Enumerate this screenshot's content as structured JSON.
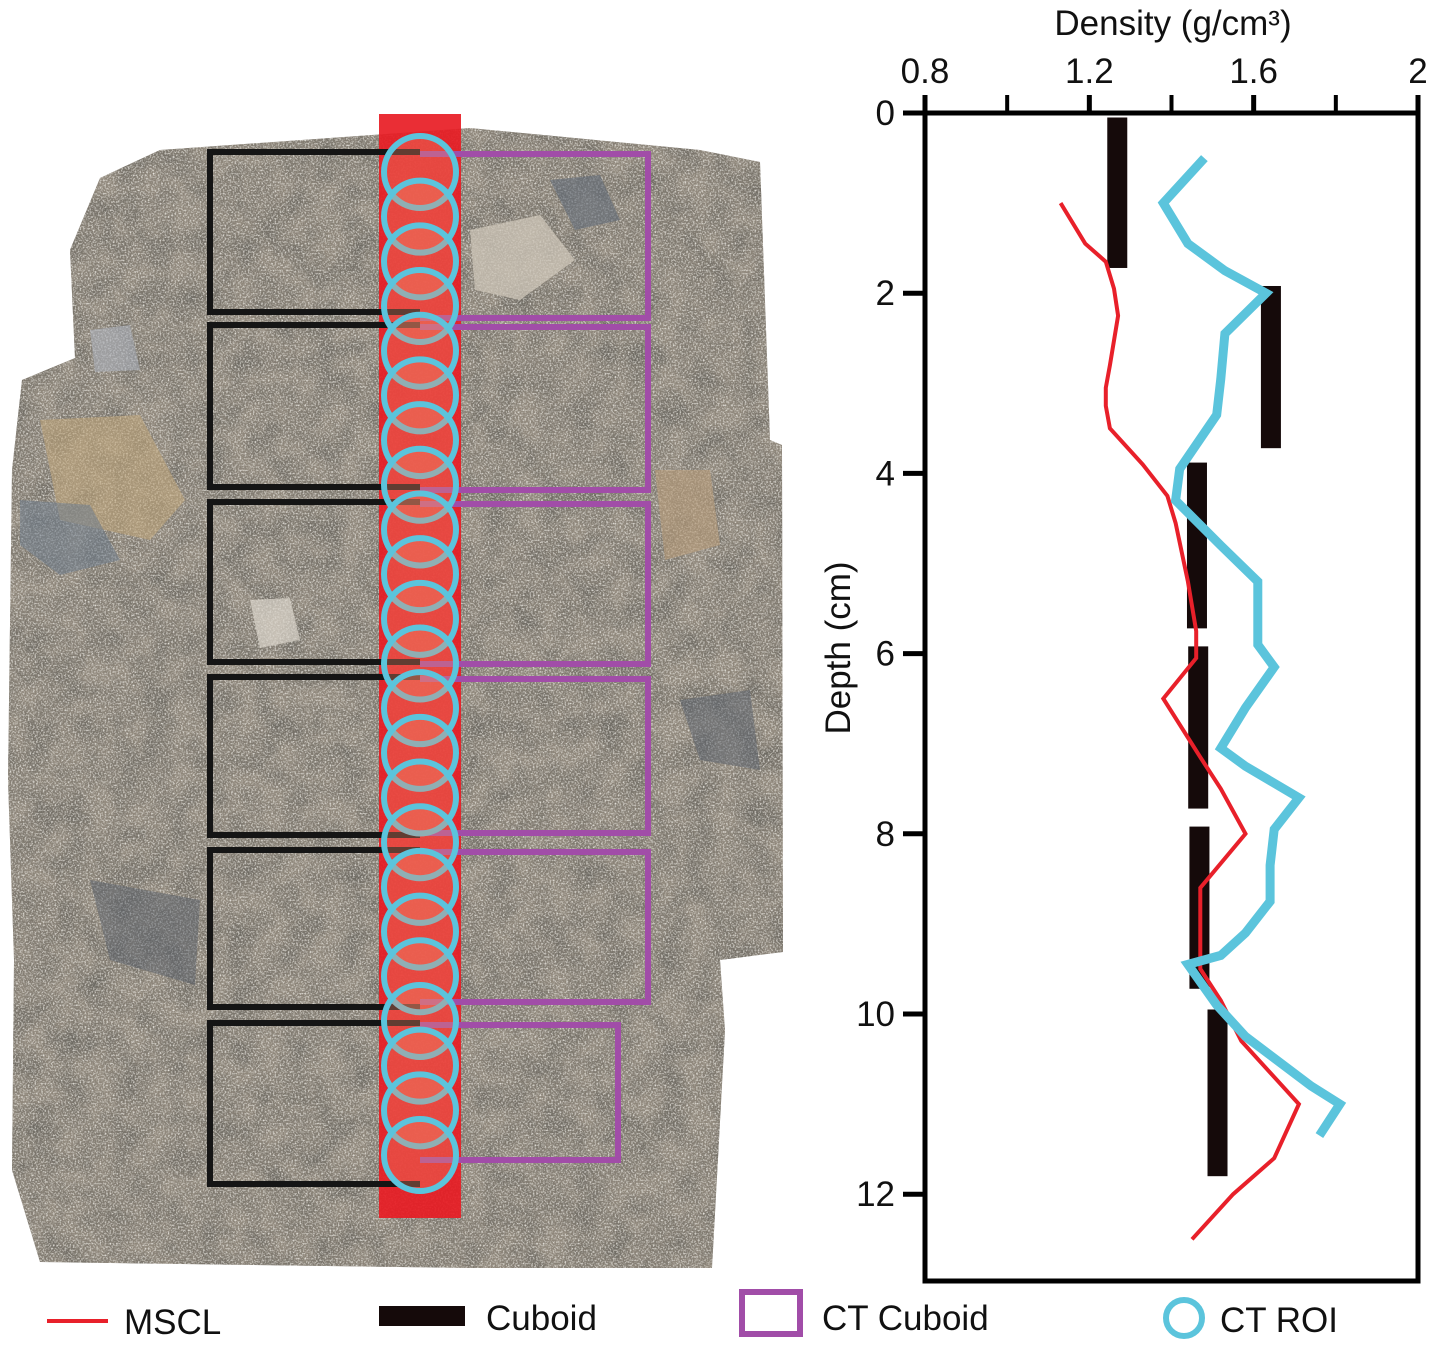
{
  "chart_data": {
    "type": "line",
    "xlabel": "Density (g/cm³)",
    "ylabel": "Depth (cm)",
    "xlim": [
      0.8,
      2.0
    ],
    "ylim": [
      0,
      13
    ],
    "x_ticks": [
      0.8,
      1.2,
      1.6,
      2
    ],
    "x_tick_labels": [
      "0.8",
      "1.2",
      "1.6",
      "2"
    ],
    "y_ticks": [
      0,
      2,
      4,
      6,
      8,
      10,
      12
    ],
    "y_tick_labels": [
      "0",
      "2",
      "4",
      "6",
      "8",
      "10",
      "12"
    ],
    "y_inverted": true,
    "x_axis_position": "top",
    "grid": false,
    "legend_position": "bottom",
    "series": [
      {
        "name": "MSCL",
        "color": "#e8202a",
        "style": "thin-line",
        "points": [
          [
            1.13,
            1.0
          ],
          [
            1.19,
            1.45
          ],
          [
            1.24,
            1.65
          ],
          [
            1.26,
            1.95
          ],
          [
            1.27,
            2.25
          ],
          [
            1.25,
            2.8
          ],
          [
            1.24,
            3.05
          ],
          [
            1.24,
            3.25
          ],
          [
            1.25,
            3.5
          ],
          [
            1.33,
            3.9
          ],
          [
            1.39,
            4.25
          ],
          [
            1.41,
            4.55
          ],
          [
            1.44,
            5.2
          ],
          [
            1.46,
            5.75
          ],
          [
            1.46,
            6.05
          ],
          [
            1.38,
            6.5
          ],
          [
            1.47,
            7.15
          ],
          [
            1.52,
            7.5
          ],
          [
            1.58,
            8.0
          ],
          [
            1.47,
            8.6
          ],
          [
            1.47,
            9.5
          ],
          [
            1.52,
            9.85
          ],
          [
            1.57,
            10.3
          ],
          [
            1.71,
            11.0
          ],
          [
            1.65,
            11.6
          ],
          [
            1.55,
            12.0
          ],
          [
            1.45,
            12.5
          ]
        ]
      },
      {
        "name": "CT ROI",
        "color": "#5bc4dc",
        "style": "thick-line",
        "points": [
          [
            1.48,
            0.5
          ],
          [
            1.38,
            1.0
          ],
          [
            1.44,
            1.45
          ],
          [
            1.53,
            1.75
          ],
          [
            1.63,
            2.0
          ],
          [
            1.53,
            2.45
          ],
          [
            1.52,
            2.95
          ],
          [
            1.51,
            3.35
          ],
          [
            1.42,
            3.95
          ],
          [
            1.41,
            4.3
          ],
          [
            1.52,
            4.8
          ],
          [
            1.61,
            5.2
          ],
          [
            1.61,
            5.9
          ],
          [
            1.65,
            6.15
          ],
          [
            1.58,
            6.6
          ],
          [
            1.52,
            7.05
          ],
          [
            1.58,
            7.25
          ],
          [
            1.71,
            7.6
          ],
          [
            1.65,
            7.95
          ],
          [
            1.64,
            8.35
          ],
          [
            1.64,
            8.75
          ],
          [
            1.58,
            9.1
          ],
          [
            1.52,
            9.35
          ],
          [
            1.44,
            9.45
          ],
          [
            1.51,
            9.9
          ],
          [
            1.58,
            10.25
          ],
          [
            1.74,
            10.8
          ],
          [
            1.81,
            11.0
          ],
          [
            1.76,
            11.35
          ]
        ]
      },
      {
        "name": "Cuboid",
        "color": "#150a0a",
        "style": "bars",
        "segments": [
          {
            "x": 1.268,
            "y0": 0.05,
            "y1": 1.72
          },
          {
            "x": 1.642,
            "y0": 1.92,
            "y1": 3.72
          },
          {
            "x": 1.462,
            "y0": 3.88,
            "y1": 5.72
          },
          {
            "x": 1.465,
            "y0": 5.92,
            "y1": 7.72
          },
          {
            "x": 1.468,
            "y0": 7.92,
            "y1": 9.72
          },
          {
            "x": 1.512,
            "y0": 9.95,
            "y1": 11.8
          }
        ]
      },
      {
        "name": "CT Cuboid",
        "color": "#a14da8",
        "style": "outline-box"
      }
    ]
  },
  "legend": [
    {
      "label": "MSCL",
      "color": "#e8202a",
      "kind": "thin-line"
    },
    {
      "label": "Cuboid",
      "color": "#150a0a",
      "kind": "bar"
    },
    {
      "label": "CT Cuboid",
      "color": "#a14da8",
      "kind": "box"
    },
    {
      "label": "CT ROI",
      "color": "#5bc4dc",
      "kind": "circle"
    }
  ],
  "core_photo": {
    "rock_color": "#8f877b",
    "strip_color": "#e81c24",
    "cuboid_outline_color": "#151515",
    "ct_cuboid_outline_color": "#a14da8",
    "roi_circle_color": "#5bc4dc",
    "cuboid_count": 6,
    "roi_circle_count": 23
  }
}
